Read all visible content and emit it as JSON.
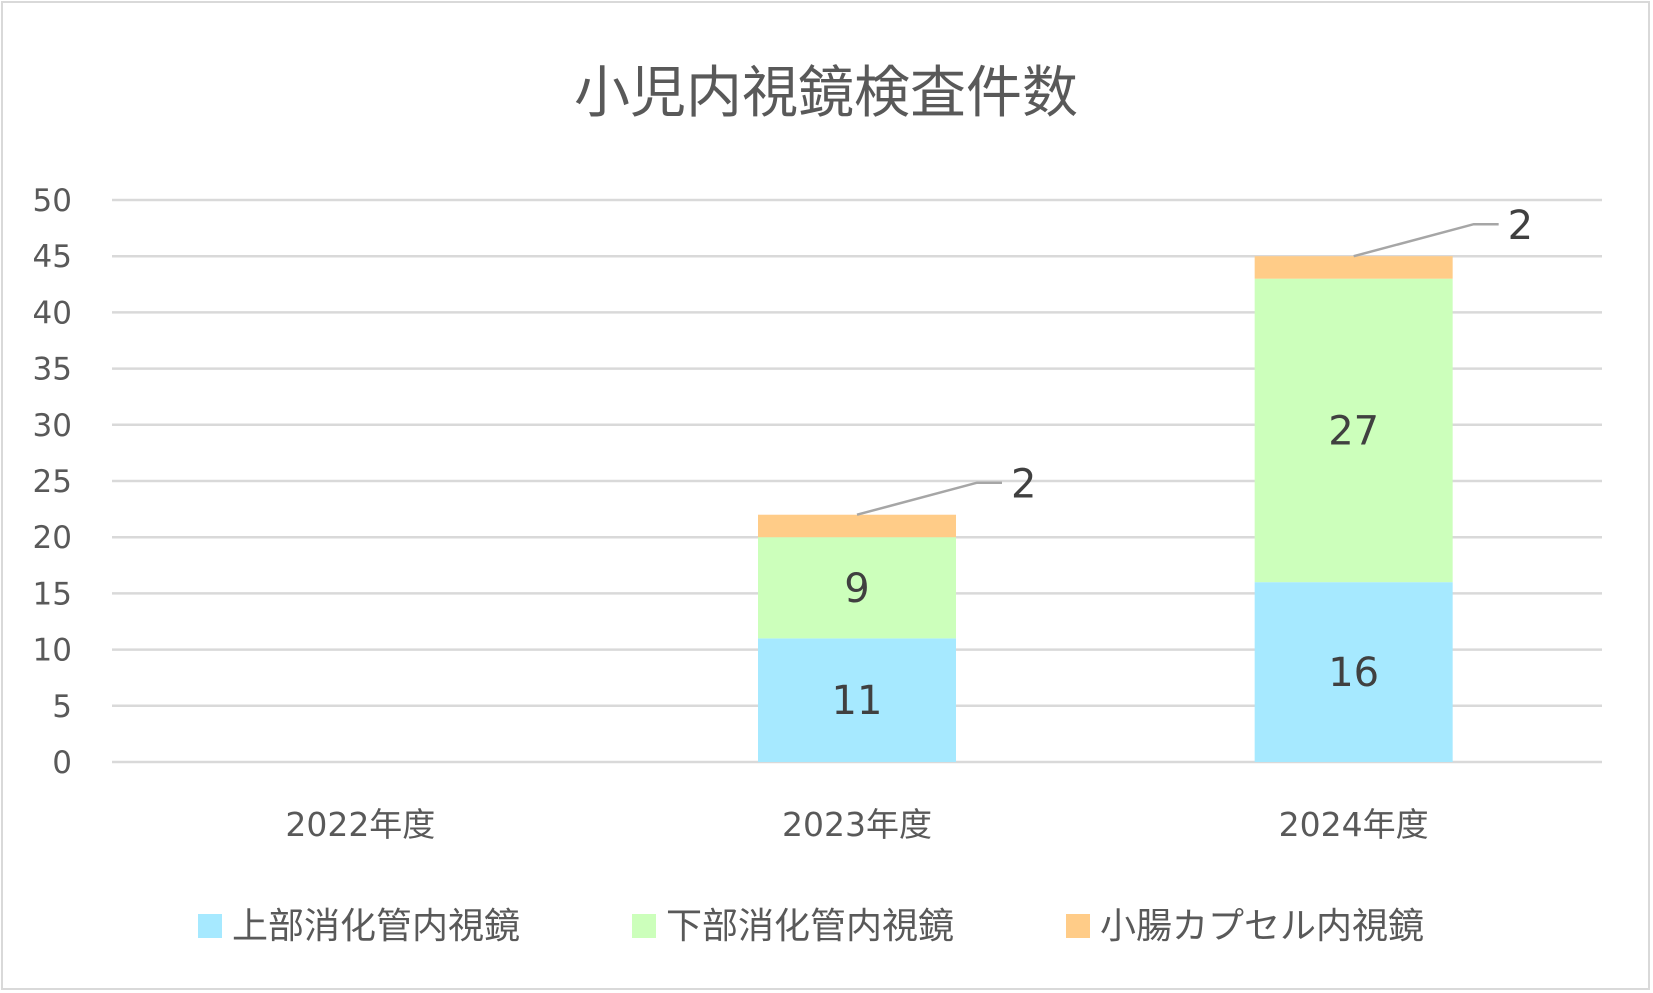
{
  "chart_data": {
    "type": "bar",
    "stacked": true,
    "title": "小児内視鏡検査件数",
    "categories": [
      "2022年度",
      "2023年度",
      "2024年度"
    ],
    "ylim": [
      0,
      50
    ],
    "yticks": [
      0,
      5,
      10,
      15,
      20,
      25,
      30,
      35,
      40,
      45,
      50
    ],
    "grid": true,
    "legend_position": "bottom",
    "series": [
      {
        "name": "上部消化管内視鏡",
        "color": "#a6e9ff",
        "values": [
          0,
          11,
          16
        ],
        "labels": [
          "",
          "11",
          "16"
        ]
      },
      {
        "name": "下部消化管内視鏡",
        "color": "#ccffbb",
        "values": [
          0,
          9,
          27
        ],
        "labels": [
          "",
          "9",
          "27"
        ]
      },
      {
        "name": "小腸カプセル内視鏡",
        "color": "#ffcc88",
        "values": [
          0,
          2,
          2
        ],
        "labels": [
          "",
          "2",
          "2"
        ]
      }
    ]
  }
}
